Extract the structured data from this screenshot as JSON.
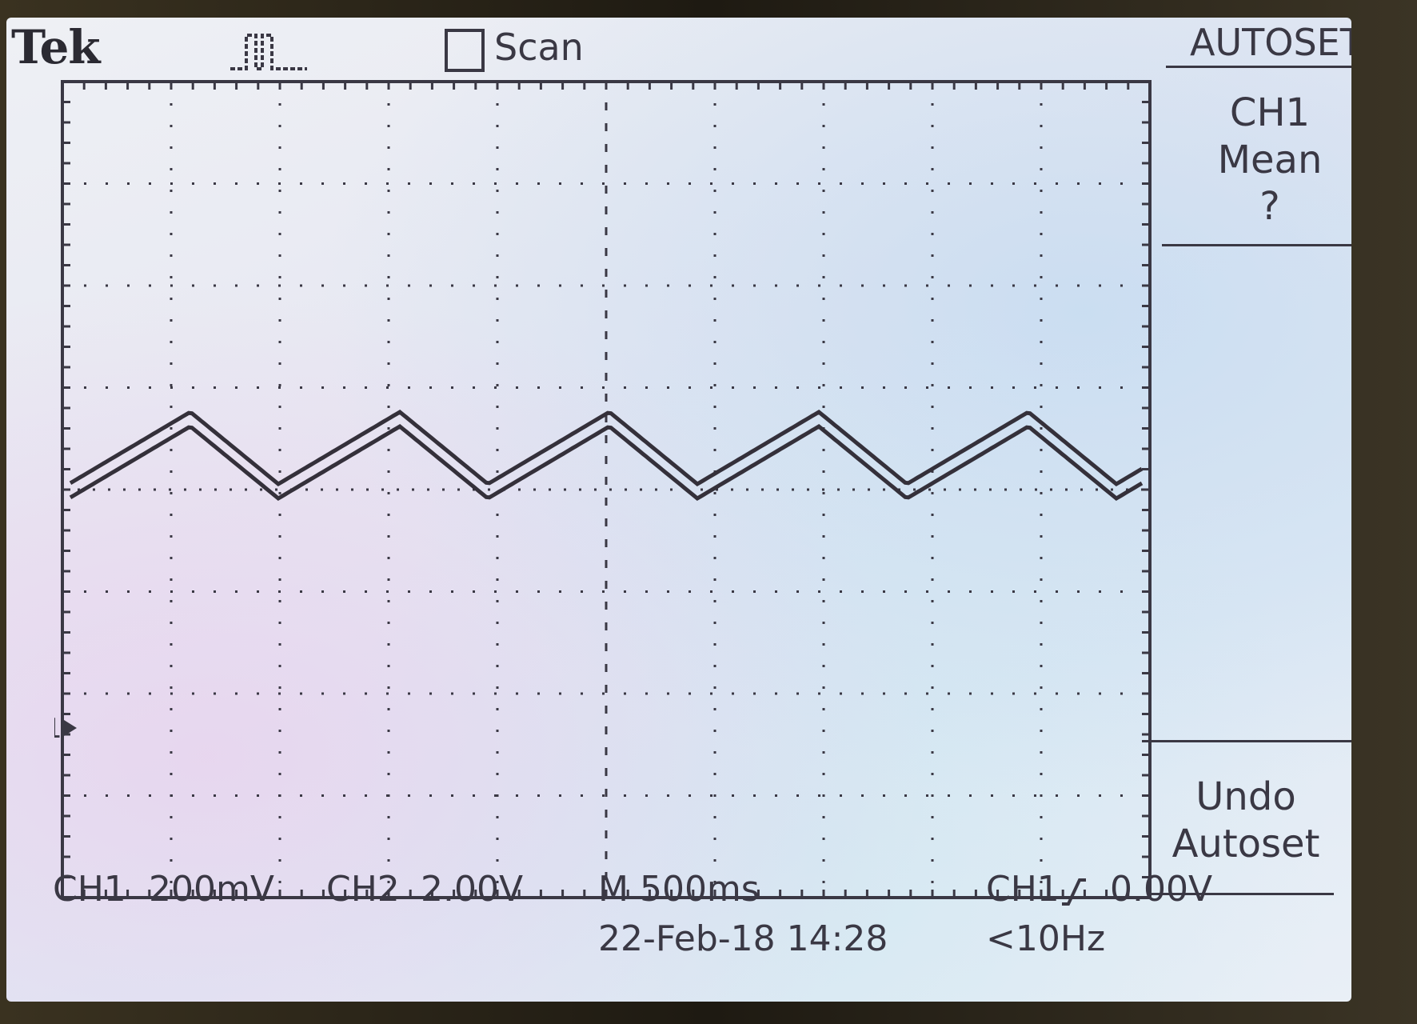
{
  "header": {
    "brand": "Tek",
    "trigger_status_icon": "trigger-waveform-icon",
    "acquire_mode": "Scan",
    "menu_title": "AUTOSET"
  },
  "side_menu": {
    "item1": {
      "line1": "CH1",
      "line2": "Mean",
      "line3": "?"
    },
    "item2": {
      "line1": "Undo",
      "line2": "Autoset"
    }
  },
  "status": {
    "ch1_label": "CH1",
    "ch1_scale": "200mV",
    "ch2_label": "CH2",
    "ch2_scale": "2.00V",
    "timebase": "M 500ms",
    "trigger_source": "CH1",
    "trigger_slope_icon": "rising-edge-icon",
    "trigger_level": "0.00V",
    "datetime": "22-Feb-18 14:28",
    "frequency": "<10Hz"
  },
  "ground_marker": "1",
  "colors": {
    "trace": "#34303a",
    "text": "#3a3844",
    "grid": "#3a3844"
  }
}
